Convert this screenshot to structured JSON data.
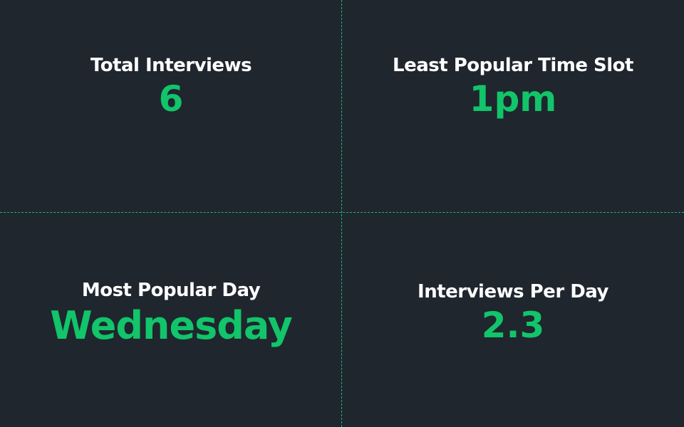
{
  "colors": {
    "background": "#1f262e",
    "label": "#ffffff",
    "value": "#12c46a",
    "divider": "#1fb57a"
  },
  "stats": [
    {
      "label": "Total Interviews",
      "value": "6"
    },
    {
      "label": "Least Popular Time Slot",
      "value": "1pm"
    },
    {
      "label": "Most Popular Day",
      "value": "Wednesday"
    },
    {
      "label": "Interviews Per Day",
      "value": "2.3"
    }
  ]
}
